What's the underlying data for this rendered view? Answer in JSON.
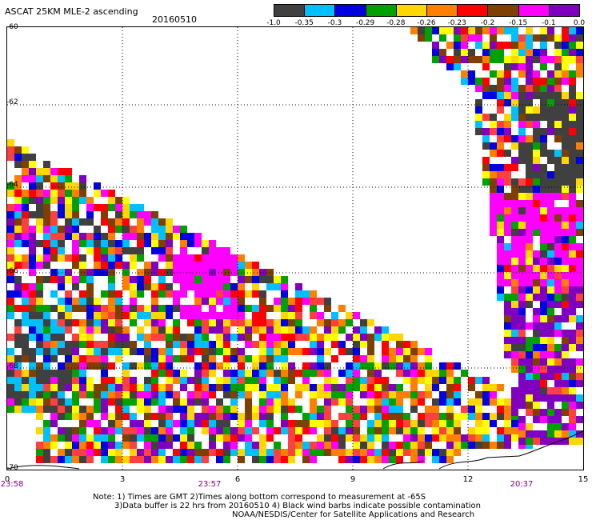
{
  "header": {
    "title": "ASCAT 25KM MLE-2 ascending",
    "date": "20160510"
  },
  "legend": {
    "colors": [
      "#404040",
      "#00bfff",
      "#0000e0",
      "#00a000",
      "#ffd700",
      "#ff7f00",
      "#ff0000",
      "#7f3f00",
      "#ff00ff",
      "#8000c0"
    ],
    "labels": [
      "-1.0",
      "-0.35",
      "-0.3",
      "-0.29",
      "-0.28",
      "-0.26",
      "-0.23",
      "-0.2",
      "-0.15",
      "-0.1",
      "0.0"
    ]
  },
  "map": {
    "lat_labels": [
      "-60",
      "-62",
      "-64",
      "-66",
      "-68",
      "-70"
    ],
    "x_ticks": [
      "0",
      "3",
      "6",
      "9",
      "12",
      "15"
    ],
    "time_labels": [
      "23:58",
      "23:57",
      "20:37"
    ]
  },
  "footer": {
    "line1": "Note: 1) Times are GMT 2)Times along bottom correspond to measurement at -65S",
    "line2": "3)Data buffer is 22 hrs from 20160510 4) Black wind barbs indicate possible contamination",
    "line3": "NOAA/NESDIS/Center for Satellite Applications and Research"
  }
}
